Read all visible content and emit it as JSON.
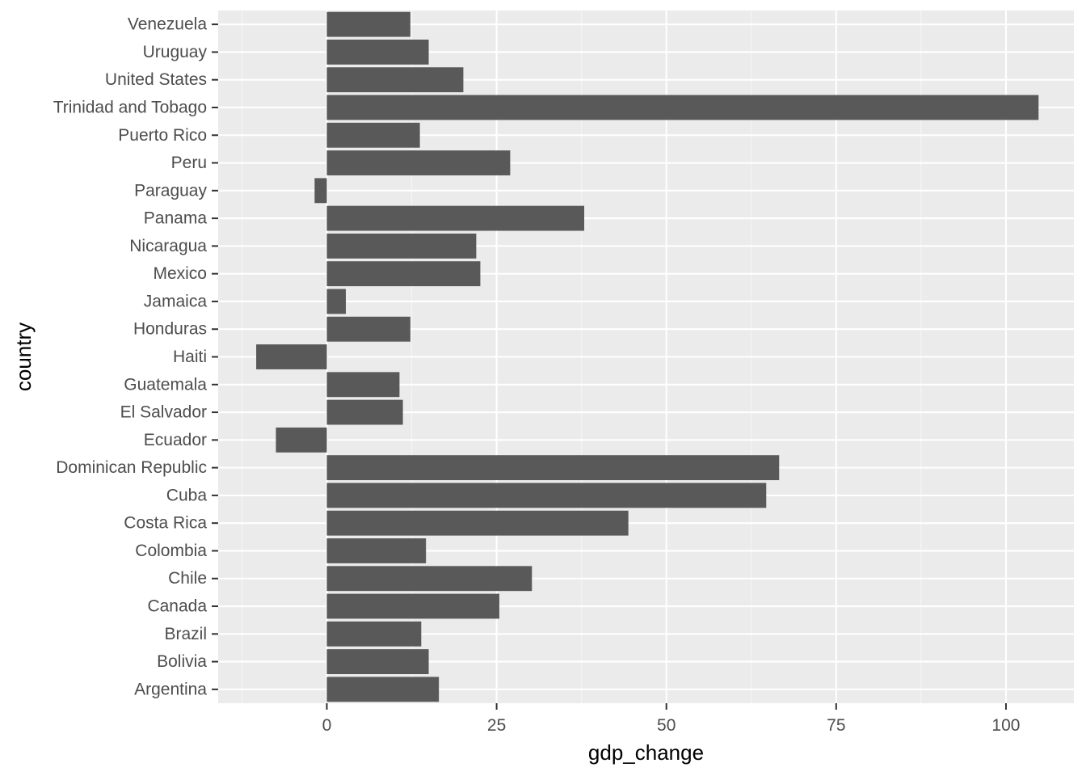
{
  "chart_data": {
    "type": "bar",
    "orientation": "horizontal",
    "xlabel": "gdp_change",
    "ylabel": "country",
    "xlim": [
      -16,
      110
    ],
    "x_ticks": [
      0,
      25,
      50,
      75,
      100
    ],
    "x_tick_labels": [
      "0",
      "25",
      "50",
      "75",
      "100"
    ],
    "grid": true,
    "categories": [
      "Argentina",
      "Bolivia",
      "Brazil",
      "Canada",
      "Chile",
      "Colombia",
      "Costa Rica",
      "Cuba",
      "Dominican Republic",
      "Ecuador",
      "El Salvador",
      "Guatemala",
      "Haiti",
      "Honduras",
      "Jamaica",
      "Mexico",
      "Nicaragua",
      "Panama",
      "Paraguay",
      "Peru",
      "Puerto Rico",
      "Trinidad and Tobago",
      "United States",
      "Uruguay",
      "Venezuela"
    ],
    "values": [
      16.5,
      15.0,
      13.9,
      25.4,
      30.2,
      14.6,
      44.4,
      64.7,
      66.6,
      -7.5,
      11.2,
      10.7,
      -10.4,
      12.3,
      2.8,
      22.6,
      22.0,
      37.9,
      -1.8,
      27.0,
      13.7,
      104.8,
      20.1,
      15.0,
      12.3
    ],
    "colors": {
      "panel_background": "#ebebeb",
      "grid_major": "#ffffff",
      "grid_minor": "#f5f5f5",
      "bar_fill": "#595959",
      "tick_color": "#333333",
      "tick_label": "#4d4d4d",
      "axis_title": "#000000",
      "page_background": "#ffffff"
    }
  }
}
